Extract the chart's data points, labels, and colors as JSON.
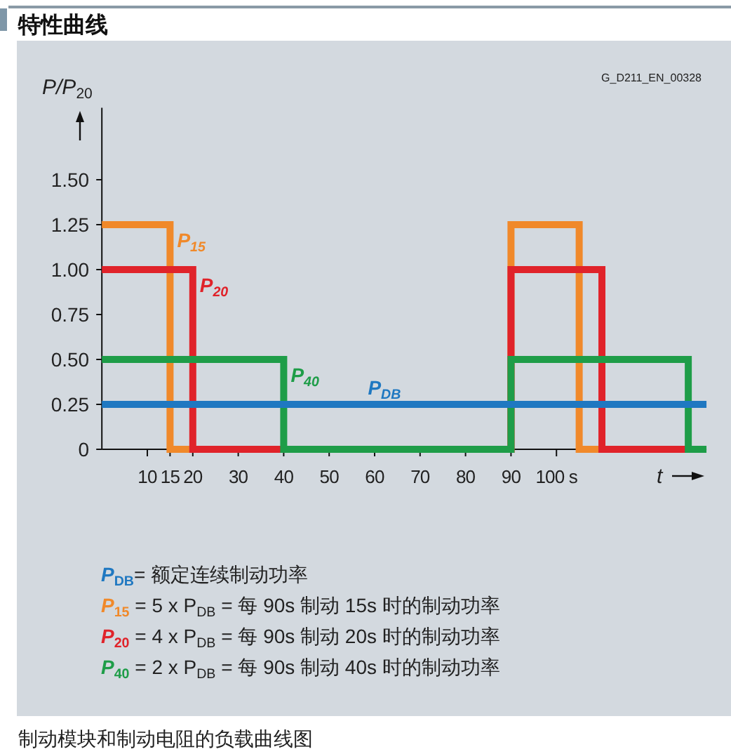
{
  "chart_data": {
    "type": "step",
    "title": "特性曲线",
    "ylabel": "P/P$_{20}$",
    "xlabel": "t",
    "xlim": [
      0,
      133
    ],
    "ylim": [
      0,
      1.9
    ],
    "xticks": [
      10,
      15,
      20,
      30,
      40,
      50,
      60,
      70,
      80,
      90,
      {
        "value": 100,
        "label": "100 s"
      }
    ],
    "yticks": [
      0,
      0.25,
      {
        "value": 0.5,
        "label": "0.50"
      },
      0.75,
      {
        "value": 1,
        "label": "1.00"
      },
      1.25,
      {
        "value": 1.5,
        "label": "1.50"
      }
    ],
    "series": [
      {
        "name": "P$_{DB}$",
        "color": "#1f78c1",
        "x": [
          0,
          133
        ],
        "values": [
          0.25,
          0.25
        ]
      },
      {
        "name": "P$_{15}$",
        "color": "#f0892a",
        "x": [
          0,
          15,
          90,
          105,
          110
        ],
        "values": [
          1.25,
          0,
          1.25,
          0,
          0
        ]
      },
      {
        "name": "P$_{20}$",
        "color": "#e0232a",
        "x": [
          0,
          20,
          90,
          110,
          129
        ],
        "values": [
          1,
          0,
          1,
          0,
          0
        ]
      },
      {
        "name": "P$_{40}$",
        "color": "#1e9d48",
        "x": [
          0,
          40,
          90,
          129,
          133
        ],
        "values": [
          0.5,
          0,
          0.5,
          0,
          0
        ]
      }
    ],
    "annotations": [
      "G_D211_EN_00328",
      "P$_{DB}$= 额定连续制动功率",
      "P$_{15}$ = 5 x P$_{DB}$ = 每 90s 制动 15s 时的制动功率",
      "P$_{20}$ = 4 x P$_{DB}$ = 每 90s 制动 20s 时的制动功率",
      "P$_{40}$ = 2 x P$_{DB}$ = 每 90s 制动 40s 时的制动功率",
      "制动模块和制动电阻的负载曲线图"
    ],
    "line_style": "solid"
  }
}
